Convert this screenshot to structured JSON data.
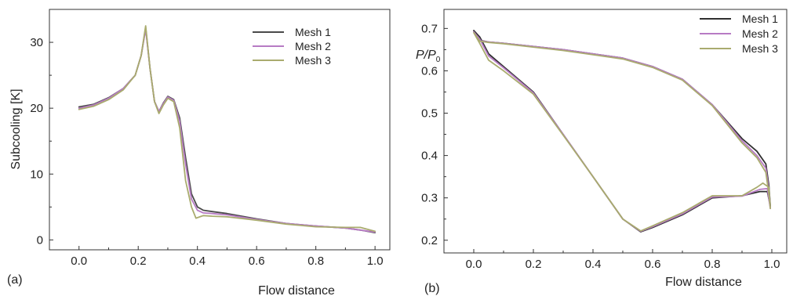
{
  "chart_data": [
    {
      "type": "line",
      "panel_label": "(a)",
      "xlabel": "Flow distance",
      "ylabel": "Subcooling [K]",
      "xlim": [
        -0.1,
        1.05
      ],
      "ylim": [
        -1.5,
        35
      ],
      "xticks": [
        "0.0",
        "0.2",
        "0.4",
        "0.6",
        "0.8",
        "1.0"
      ],
      "xtick_values": [
        0,
        0.2,
        0.4,
        0.6,
        0.8,
        1.0
      ],
      "yticks": [
        "0",
        "10",
        "20",
        "30"
      ],
      "ytick_values": [
        0,
        10,
        20,
        30
      ],
      "grid": false,
      "legend_position": "top-right",
      "series": [
        {
          "name": "Mesh 1",
          "color": "#4a4a4a",
          "x": [
            0.0,
            0.05,
            0.1,
            0.15,
            0.19,
            0.21,
            0.225,
            0.24,
            0.255,
            0.27,
            0.285,
            0.3,
            0.32,
            0.34,
            0.36,
            0.38,
            0.4,
            0.42,
            0.45,
            0.5,
            0.6,
            0.7,
            0.8,
            0.9,
            0.95,
            1.0
          ],
          "y": [
            20.2,
            20.6,
            21.6,
            23.0,
            25.0,
            28.0,
            32.2,
            26.0,
            21.0,
            19.5,
            20.8,
            21.8,
            21.3,
            18.5,
            12.5,
            7.0,
            5.0,
            4.5,
            4.3,
            4.0,
            3.2,
            2.5,
            2.1,
            1.8,
            1.5,
            1.1
          ]
        },
        {
          "name": "Mesh 2",
          "color": "#b77bc4",
          "x": [
            0.0,
            0.05,
            0.1,
            0.15,
            0.19,
            0.21,
            0.225,
            0.24,
            0.255,
            0.27,
            0.285,
            0.3,
            0.32,
            0.34,
            0.36,
            0.38,
            0.4,
            0.42,
            0.45,
            0.5,
            0.6,
            0.7,
            0.8,
            0.9,
            0.95,
            1.0
          ],
          "y": [
            20.0,
            20.5,
            21.5,
            23.0,
            25.0,
            28.0,
            32.0,
            26.0,
            21.0,
            19.5,
            20.7,
            21.7,
            21.2,
            18.0,
            11.5,
            6.2,
            4.5,
            4.1,
            4.0,
            3.8,
            3.1,
            2.5,
            2.1,
            1.8,
            1.5,
            1.2
          ]
        },
        {
          "name": "Mesh 3",
          "color": "#a9ab6e",
          "x": [
            0.0,
            0.05,
            0.1,
            0.15,
            0.19,
            0.21,
            0.225,
            0.24,
            0.255,
            0.27,
            0.285,
            0.3,
            0.32,
            0.34,
            0.36,
            0.38,
            0.395,
            0.42,
            0.45,
            0.5,
            0.6,
            0.7,
            0.8,
            0.9,
            0.95,
            1.0
          ],
          "y": [
            19.8,
            20.3,
            21.3,
            22.8,
            25.0,
            28.0,
            32.5,
            26.0,
            21.0,
            19.2,
            20.5,
            21.5,
            21.0,
            17.0,
            9.0,
            5.0,
            3.3,
            3.7,
            3.6,
            3.5,
            3.0,
            2.4,
            2.0,
            1.9,
            1.9,
            1.3
          ]
        }
      ]
    },
    {
      "type": "line",
      "panel_label": "(b)",
      "xlabel": "Flow distance",
      "ylabel": "P/P",
      "ylabel_subscript": "0",
      "xlim": [
        -0.1,
        1.05
      ],
      "ylim": [
        0.17,
        0.745
      ],
      "xticks": [
        "0.0",
        "0.2",
        "0.4",
        "0.6",
        "0.8",
        "1.0"
      ],
      "xtick_values": [
        0,
        0.2,
        0.4,
        0.6,
        0.8,
        1.0
      ],
      "yticks": [
        "0.2",
        "0.3",
        "0.4",
        "0.5",
        "0.6",
        "0.7"
      ],
      "ytick_values": [
        0.2,
        0.3,
        0.4,
        0.5,
        0.6,
        0.7
      ],
      "grid": false,
      "legend_position": "top-right",
      "series": [
        {
          "name": "Mesh 1",
          "color": "#2f2f2f",
          "x": [
            0.0,
            0.02,
            0.05,
            0.1,
            0.2,
            0.3,
            0.4,
            0.5,
            0.56,
            0.6,
            0.7,
            0.8,
            0.9,
            0.96,
            0.985,
            0.995,
            0.99,
            0.98,
            0.95,
            0.9,
            0.8,
            0.7,
            0.6,
            0.5,
            0.3,
            0.1,
            0.05,
            0.02,
            0.0
          ],
          "y": [
            0.695,
            0.68,
            0.64,
            0.61,
            0.55,
            0.45,
            0.35,
            0.25,
            0.22,
            0.23,
            0.26,
            0.3,
            0.305,
            0.315,
            0.315,
            0.28,
            0.33,
            0.38,
            0.41,
            0.44,
            0.52,
            0.58,
            0.61,
            0.63,
            0.65,
            0.665,
            0.668,
            0.672,
            0.695
          ]
        },
        {
          "name": "Mesh 2",
          "color": "#b77bc4",
          "x": [
            0.0,
            0.02,
            0.05,
            0.1,
            0.2,
            0.3,
            0.4,
            0.5,
            0.56,
            0.6,
            0.7,
            0.8,
            0.9,
            0.96,
            0.985,
            0.995,
            0.99,
            0.98,
            0.95,
            0.9,
            0.8,
            0.7,
            0.6,
            0.5,
            0.3,
            0.1,
            0.05,
            0.02,
            0.0
          ],
          "y": [
            0.692,
            0.675,
            0.635,
            0.607,
            0.548,
            0.45,
            0.35,
            0.25,
            0.221,
            0.232,
            0.262,
            0.302,
            0.304,
            0.32,
            0.322,
            0.275,
            0.32,
            0.37,
            0.4,
            0.435,
            0.52,
            0.58,
            0.61,
            0.63,
            0.65,
            0.665,
            0.668,
            0.671,
            0.692
          ]
        },
        {
          "name": "Mesh 3",
          "color": "#a9ab6e",
          "x": [
            0.0,
            0.02,
            0.05,
            0.1,
            0.2,
            0.3,
            0.4,
            0.5,
            0.56,
            0.6,
            0.7,
            0.8,
            0.9,
            0.95,
            0.97,
            0.99,
            0.995,
            0.99,
            0.98,
            0.95,
            0.9,
            0.8,
            0.7,
            0.6,
            0.5,
            0.3,
            0.1,
            0.05,
            0.02,
            0.0
          ],
          "y": [
            0.69,
            0.665,
            0.625,
            0.6,
            0.545,
            0.448,
            0.35,
            0.25,
            0.222,
            0.234,
            0.265,
            0.305,
            0.305,
            0.325,
            0.335,
            0.325,
            0.275,
            0.31,
            0.36,
            0.395,
            0.43,
            0.518,
            0.578,
            0.608,
            0.628,
            0.648,
            0.664,
            0.667,
            0.67,
            0.69
          ]
        }
      ]
    }
  ]
}
